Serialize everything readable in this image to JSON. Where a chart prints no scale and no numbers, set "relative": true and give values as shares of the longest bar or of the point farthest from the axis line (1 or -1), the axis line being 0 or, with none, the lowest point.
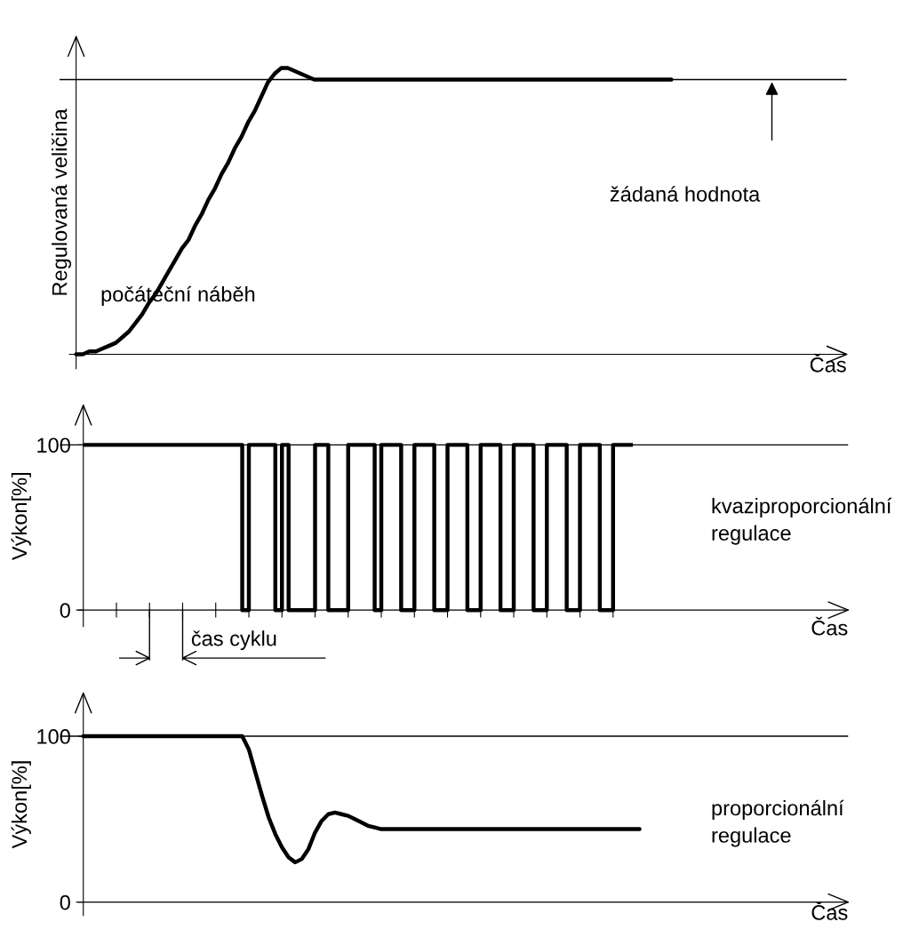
{
  "chart_data": [
    {
      "type": "line",
      "relative": true,
      "ylabel": "Regulovaná veličina",
      "xlabel": "Čas",
      "tick_labels": false,
      "grid": false,
      "legend": false,
      "categories": [
        null,
        null,
        null,
        null,
        null,
        null,
        null,
        null,
        null,
        null,
        null,
        null,
        null,
        null,
        null,
        null,
        null,
        null,
        null,
        null,
        null,
        null,
        null,
        null,
        null,
        null,
        null,
        null,
        null,
        null,
        null,
        null,
        null,
        null,
        null,
        null,
        null,
        null,
        null,
        null,
        null,
        null,
        null,
        null,
        null,
        null,
        null,
        null,
        null,
        null,
        null,
        null,
        null,
        null,
        null,
        null,
        null,
        null,
        null,
        null,
        null,
        null,
        null,
        null,
        null,
        null,
        null,
        null,
        null,
        null,
        null,
        null,
        null,
        null,
        null,
        null,
        null,
        null,
        null,
        null,
        null,
        null,
        null,
        null,
        null,
        null,
        null,
        null,
        null,
        null,
        null,
        null,
        null,
        null,
        null,
        null,
        null,
        null,
        null,
        null,
        null,
        null,
        null,
        null,
        null,
        null,
        null,
        null,
        null,
        null,
        null,
        null,
        null,
        null,
        null,
        null,
        null,
        null,
        null
      ],
      "series": [
        {
          "color": "#000000",
          "values": [
            null,
            null,
            0,
            0,
            0.01,
            0.01,
            0.02,
            0.03,
            0.04,
            0.06,
            0.08,
            0.11,
            0.14,
            0.18,
            0.21,
            0.25,
            0.29,
            0.33,
            0.37,
            0.4,
            0.45,
            0.49,
            0.54,
            0.58,
            0.63,
            0.67,
            0.72,
            0.76,
            0.81,
            0.85,
            0.9,
            0.95,
            0.98,
            1.0,
            1.0,
            0.99,
            0.98,
            0.97,
            0.96,
            0.96,
            0.96,
            0.96,
            0.96,
            0.96,
            0.96,
            0.96,
            0.96,
            0.96,
            0.96,
            0.96,
            0.96,
            0.96,
            0.96,
            0.96,
            0.96,
            0.96,
            0.96,
            0.96,
            0.96,
            0.96,
            0.96,
            0.96,
            0.96,
            0.96,
            0.96,
            0.96,
            0.96,
            0.96,
            0.96,
            0.96,
            0.96,
            0.96,
            0.96,
            0.96,
            0.96,
            0.96,
            0.96,
            0.96,
            0.96,
            0.96,
            0.96,
            0.96,
            0.96,
            0.96,
            0.96,
            0.96,
            0.96,
            0.96,
            0.96,
            0.96,
            0.96,
            0.96,
            0.96,
            null,
            null,
            null,
            null,
            null,
            null,
            null,
            null,
            null,
            null,
            null,
            null,
            null,
            null,
            null,
            null,
            null,
            null,
            null,
            null,
            null,
            null,
            null,
            null,
            null,
            null
          ]
        }
      ],
      "ref_lines": [
        {
          "axis": "y",
          "value": 0.96,
          "color": "#000000"
        }
      ],
      "annotations": [
        "žádaná hodnota",
        "počáteční náběh"
      ]
    },
    {
      "type": "step",
      "ylabel": "Výkon[%]",
      "xlabel": "Čas",
      "ylim": [
        -10,
        124
      ],
      "yticks": [
        0,
        100
      ],
      "tick_labels": "y",
      "grid": false,
      "legend": false,
      "categories": [
        null,
        null,
        null,
        null,
        null,
        null,
        null,
        null,
        null,
        null,
        null,
        null,
        null,
        null,
        null,
        null,
        null,
        null,
        null,
        null,
        null,
        null,
        null,
        null,
        null,
        null,
        null,
        null,
        null,
        null,
        null,
        null,
        null,
        null,
        null,
        null,
        null,
        null,
        null,
        null,
        null,
        null,
        null,
        null,
        null,
        null,
        null,
        null,
        null,
        null,
        null,
        null,
        null,
        null,
        null,
        null,
        null,
        null,
        null,
        null,
        null,
        null,
        null,
        null,
        null,
        null,
        null,
        null,
        null,
        null,
        null,
        null,
        null,
        null,
        null,
        null,
        null,
        null,
        null,
        null,
        null,
        null,
        null,
        null,
        null,
        null,
        null,
        null,
        null,
        null,
        null,
        null,
        null,
        null,
        null,
        null,
        null,
        null,
        null,
        null,
        null,
        null,
        null,
        null,
        null,
        null,
        null,
        null,
        null,
        null,
        null,
        null,
        null,
        null,
        null,
        null,
        null,
        null,
        null
      ],
      "series": [
        {
          "color": "#000000",
          "values": [
            null,
            null,
            null,
            100,
            100,
            100,
            100,
            100,
            100,
            100,
            100,
            100,
            100,
            100,
            100,
            100,
            100,
            100,
            100,
            100,
            100,
            100,
            100,
            100,
            100,
            100,
            100,
            0,
            100,
            100,
            100,
            100,
            0,
            100,
            0,
            0,
            0,
            0,
            100,
            100,
            0,
            0,
            0,
            100,
            100,
            100,
            100,
            0,
            100,
            100,
            100,
            0,
            0,
            100,
            100,
            100,
            0,
            0,
            100,
            100,
            100,
            0,
            0,
            100,
            100,
            100,
            0,
            0,
            100,
            100,
            100,
            0,
            0,
            100,
            100,
            100,
            0,
            0,
            100,
            100,
            100,
            0,
            0,
            100,
            100,
            100,
            100,
            null,
            null,
            null,
            null,
            null,
            null,
            null,
            null,
            null,
            null,
            null,
            null,
            null,
            null,
            null,
            null,
            null,
            null,
            null,
            null,
            null,
            null,
            null,
            null,
            null,
            null,
            null,
            null,
            null,
            null,
            null,
            null
          ]
        }
      ],
      "ref_lines": [
        {
          "axis": "y",
          "value": 100,
          "color": "#000000"
        }
      ],
      "annotations": [
        "čas cyklu",
        "kvaziproporcionální regulace"
      ]
    },
    {
      "type": "line",
      "ylabel": "Výkon[%]",
      "xlabel": "Čas",
      "ylim": [
        -8,
        126
      ],
      "yticks": [
        0,
        100
      ],
      "tick_labels": "y",
      "grid": false,
      "legend": false,
      "categories": [
        null,
        null,
        null,
        null,
        null,
        null,
        null,
        null,
        null,
        null,
        null,
        null,
        null,
        null,
        null,
        null,
        null,
        null,
        null,
        null,
        null,
        null,
        null,
        null,
        null,
        null,
        null,
        null,
        null,
        null,
        null,
        null,
        null,
        null,
        null,
        null,
        null,
        null,
        null,
        null,
        null,
        null,
        null,
        null,
        null,
        null,
        null,
        null,
        null,
        null,
        null,
        null,
        null,
        null,
        null,
        null,
        null,
        null,
        null,
        null,
        null,
        null,
        null,
        null,
        null,
        null,
        null,
        null,
        null,
        null,
        null,
        null,
        null,
        null,
        null,
        null,
        null,
        null,
        null,
        null,
        null,
        null,
        null,
        null,
        null,
        null,
        null,
        null,
        null,
        null,
        null,
        null,
        null,
        null,
        null,
        null,
        null,
        null,
        null,
        null,
        null,
        null,
        null,
        null,
        null,
        null,
        null,
        null,
        null,
        null,
        null,
        null,
        null,
        null,
        null,
        null,
        null,
        null,
        null
      ],
      "series": [
        {
          "color": "#000000",
          "values": [
            null,
            null,
            null,
            100,
            100,
            100,
            100,
            100,
            100,
            100,
            100,
            100,
            100,
            100,
            100,
            100,
            100,
            100,
            100,
            100,
            100,
            100,
            100,
            100,
            100,
            100,
            100,
            100,
            92,
            78,
            64,
            51,
            41,
            33,
            27,
            24,
            26,
            32,
            42,
            49,
            53,
            54,
            53,
            52,
            50,
            48,
            46,
            45,
            44,
            44,
            44,
            44,
            44,
            44,
            44,
            44,
            44,
            44,
            44,
            44,
            44,
            44,
            44,
            44,
            44,
            44,
            44,
            44,
            44,
            44,
            44,
            44,
            44,
            44,
            44,
            44,
            44,
            44,
            44,
            44,
            44,
            44,
            44,
            44,
            44,
            44,
            44,
            44,
            null,
            null,
            null,
            null,
            null,
            null,
            null,
            null,
            null,
            null,
            null,
            null,
            null,
            null,
            null,
            null,
            null,
            null,
            null,
            null,
            null,
            null,
            null,
            null,
            null,
            null,
            null,
            null,
            null,
            null,
            null
          ]
        }
      ],
      "ref_lines": [
        {
          "axis": "y",
          "value": 100,
          "color": "#000000"
        }
      ],
      "annotations": [
        "proporcionální regulace"
      ]
    }
  ]
}
